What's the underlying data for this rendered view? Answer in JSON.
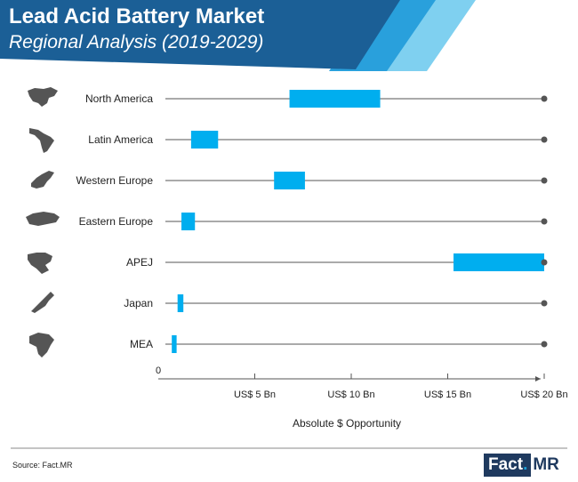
{
  "header": {
    "title": "Lead Acid Battery Market",
    "subtitle": "Regional Analysis (2019-2029)"
  },
  "colors": {
    "header_dark": "#1b5f96",
    "header_mid": "#29a0dc",
    "header_light": "#7fd0f0",
    "bar": "#00aeef",
    "axis": "#555555",
    "map": "#555555"
  },
  "chart_data": {
    "type": "range-bar",
    "title": "Lead Acid Battery Market — Regional Analysis (2019-2029)",
    "xlabel": "Absolute $ Opportunity",
    "xlim": [
      0,
      20
    ],
    "origin_label": "0",
    "x_ticks": [
      {
        "value": 5,
        "label": "US$ 5 Bn"
      },
      {
        "value": 10,
        "label": "US$ 10 Bn"
      },
      {
        "value": 15,
        "label": "US$ 15 Bn"
      },
      {
        "value": 20,
        "label": "US$ 20 Bn"
      }
    ],
    "series": [
      {
        "region": "North America",
        "start": 6.8,
        "end": 11.5,
        "icon": "north-america-map-icon"
      },
      {
        "region": "Latin America",
        "start": 1.7,
        "end": 3.1,
        "icon": "latin-america-map-icon"
      },
      {
        "region": "Western Europe",
        "start": 6.0,
        "end": 7.6,
        "icon": "western-europe-map-icon"
      },
      {
        "region": "Eastern Europe",
        "start": 1.2,
        "end": 1.9,
        "icon": "eastern-europe-map-icon"
      },
      {
        "region": "APEJ",
        "start": 15.3,
        "end": 20.0,
        "icon": "apej-map-icon"
      },
      {
        "region": "Japan",
        "start": 1.0,
        "end": 1.3,
        "icon": "japan-map-icon"
      },
      {
        "region": "MEA",
        "start": 0.7,
        "end": 0.95,
        "icon": "mea-map-icon"
      }
    ]
  },
  "footer": {
    "source": "Source: Fact.MR",
    "brand_fact": "Fact",
    "brand_dot": ".",
    "brand_mr": "MR"
  }
}
